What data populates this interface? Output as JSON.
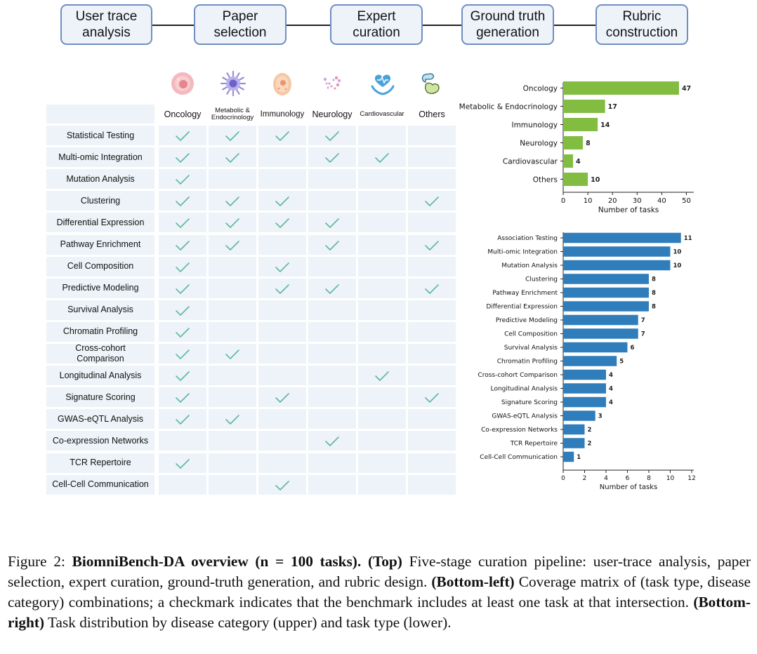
{
  "pipeline": {
    "stages": [
      {
        "label": "User trace\nanalysis"
      },
      {
        "label": "Paper\nselection"
      },
      {
        "label": "Expert\ncuration"
      },
      {
        "label": "Ground truth\ngeneration"
      },
      {
        "label": "Rubric\nconstruction"
      }
    ]
  },
  "matrix": {
    "columns": [
      "Oncology",
      "Metabolic &\nEndocrinology",
      "Immunology",
      "Neurology",
      "Cardiovascular",
      "Others"
    ],
    "rows": [
      {
        "label": "Statistical Testing",
        "checks": [
          1,
          1,
          1,
          1,
          0,
          0
        ]
      },
      {
        "label": "Multi-omic Integration",
        "checks": [
          1,
          1,
          0,
          1,
          1,
          0
        ]
      },
      {
        "label": "Mutation Analysis",
        "checks": [
          1,
          0,
          0,
          0,
          0,
          0
        ]
      },
      {
        "label": "Clustering",
        "checks": [
          1,
          1,
          1,
          0,
          0,
          1
        ]
      },
      {
        "label": "Differential Expression",
        "checks": [
          1,
          1,
          1,
          1,
          0,
          0
        ]
      },
      {
        "label": "Pathway Enrichment",
        "checks": [
          1,
          1,
          0,
          1,
          0,
          1
        ]
      },
      {
        "label": "Cell Composition",
        "checks": [
          1,
          0,
          1,
          0,
          0,
          0
        ]
      },
      {
        "label": "Predictive Modeling",
        "checks": [
          1,
          0,
          1,
          1,
          0,
          1
        ]
      },
      {
        "label": "Survival Analysis",
        "checks": [
          1,
          0,
          0,
          0,
          0,
          0
        ]
      },
      {
        "label": "Chromatin Profiling",
        "checks": [
          1,
          0,
          0,
          0,
          0,
          0
        ]
      },
      {
        "label": "Cross-cohort\nComparison",
        "checks": [
          1,
          1,
          0,
          0,
          0,
          0
        ]
      },
      {
        "label": "Longitudinal Analysis",
        "checks": [
          1,
          0,
          0,
          0,
          1,
          0
        ]
      },
      {
        "label": "Signature Scoring",
        "checks": [
          1,
          0,
          1,
          0,
          0,
          1
        ]
      },
      {
        "label": "GWAS-eQTL Analysis",
        "checks": [
          1,
          1,
          0,
          0,
          0,
          0
        ]
      },
      {
        "label": "Co-expression Networks",
        "checks": [
          0,
          0,
          0,
          1,
          0,
          0
        ]
      },
      {
        "label": "TCR Repertoire",
        "checks": [
          1,
          0,
          0,
          0,
          0,
          0
        ]
      },
      {
        "label": "Cell-Cell Communication",
        "checks": [
          0,
          0,
          1,
          0,
          0,
          0
        ]
      }
    ],
    "check_color": "#5fb8a0",
    "cell_color": "#edf3f8"
  },
  "icons": [
    "cell-icon",
    "immune-cell-icon",
    "cytoplasm-cell-icon",
    "neuron-particles-icon",
    "heart-hands-icon",
    "organ-icon"
  ],
  "chart_data": [
    {
      "type": "bar",
      "orientation": "horizontal",
      "categories": [
        "Oncology",
        "Metabolic & Endocrinology",
        "Immunology",
        "Neurology",
        "Cardiovascular",
        "Others"
      ],
      "values": [
        47,
        17,
        14,
        8,
        4,
        10
      ],
      "xlabel": "Number of tasks",
      "xlim": [
        0,
        53
      ],
      "xticks": [
        0,
        10,
        20,
        30,
        40,
        50
      ],
      "color": "#82bd41"
    },
    {
      "type": "bar",
      "orientation": "horizontal",
      "categories": [
        "Association Testing",
        "Multi-omic Integration",
        "Mutation Analysis",
        "Clustering",
        "Pathway Enrichment",
        "Differential Expression",
        "Predictive Modeling",
        "Cell Composition",
        "Survival Analysis",
        "Chromatin Profiling",
        "Cross-cohort Comparison",
        "Longitudinal Analysis",
        "Signature Scoring",
        "GWAS-eQTL Analysis",
        "Co-expression Networks",
        "TCR Repertoire",
        "Cell-Cell Communication"
      ],
      "values": [
        11,
        10,
        10,
        8,
        8,
        8,
        7,
        7,
        6,
        5,
        4,
        4,
        4,
        3,
        2,
        2,
        1
      ],
      "xlabel": "Number of tasks",
      "xlim": [
        0,
        12.2
      ],
      "xticks": [
        0,
        2,
        4,
        6,
        8,
        10,
        12
      ],
      "color": "#2f7dbb"
    }
  ],
  "caption": {
    "fig_label": "Figure 2: ",
    "bold_title": "BiomniBench-DA overview (n = 100 tasks).",
    "top_label": "(Top)",
    "top_text": " Five-stage curation pipeline: user-trace analysis, paper selection, expert curation, ground-truth generation, and rubric design. ",
    "bl_label": "(Bottom-left)",
    "bl_text": " Coverage matrix of (task type, disease category) combinations; a checkmark indicates that the benchmark includes at least one task at that intersection. ",
    "br_label": "(Bottom-right)",
    "br_text": " Task distribution by disease category (upper) and task type (lower)."
  }
}
